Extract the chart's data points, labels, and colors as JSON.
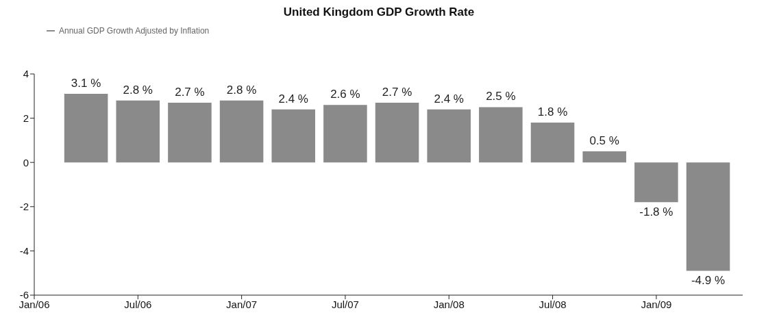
{
  "chart_data": {
    "type": "bar",
    "title": "United Kingdom GDP Growth Rate",
    "x": [
      "2006-04",
      "2006-07",
      "2006-10",
      "2007-01",
      "2007-04",
      "2007-07",
      "2007-10",
      "2008-01",
      "2008-04",
      "2008-07",
      "2008-10",
      "2009-01",
      "2009-04"
    ],
    "series": [
      {
        "name": "Annual GDP Growth Adjusted by Inflation",
        "color": "#8a8a8a",
        "values": [
          3.1,
          2.8,
          2.7,
          2.8,
          2.4,
          2.6,
          2.7,
          2.4,
          2.5,
          1.8,
          0.5,
          -1.8,
          -4.9
        ],
        "value_labels": [
          "3.1 %",
          "2.8 %",
          "2.7 %",
          "2.8 %",
          "2.4 %",
          "2.6 %",
          "2.7 %",
          "2.4 %",
          "2.5 %",
          "1.8 %",
          "0.5 %",
          "-1.8 %",
          "-4.9 %"
        ]
      }
    ],
    "xlim": [
      "2006-01",
      "2009-06"
    ],
    "xticks": [
      {
        "value": "2006-01",
        "label": "Jan/06"
      },
      {
        "value": "2006-07",
        "label": "Jul/06"
      },
      {
        "value": "2007-01",
        "label": "Jan/07"
      },
      {
        "value": "2007-07",
        "label": "Jul/07"
      },
      {
        "value": "2008-01",
        "label": "Jan/08"
      },
      {
        "value": "2008-07",
        "label": "Jul/08"
      },
      {
        "value": "2009-01",
        "label": "Jan/09"
      }
    ],
    "ylim": [
      -6,
      4
    ],
    "yticks": [
      -6,
      -4,
      -2,
      0,
      2,
      4
    ],
    "legend": "top left"
  }
}
